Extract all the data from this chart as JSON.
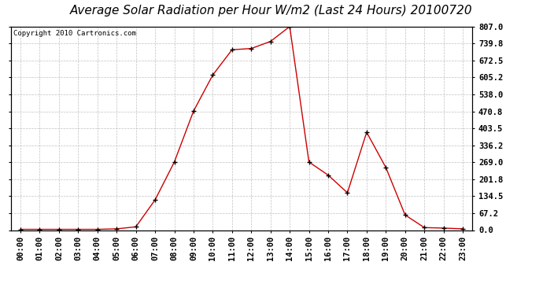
{
  "title": "Average Solar Radiation per Hour W/m2 (Last 24 Hours) 20100720",
  "copyright": "Copyright 2010 Cartronics.com",
  "hours": [
    "00:00",
    "01:00",
    "02:00",
    "03:00",
    "04:00",
    "05:00",
    "06:00",
    "07:00",
    "08:00",
    "09:00",
    "10:00",
    "11:00",
    "12:00",
    "13:00",
    "14:00",
    "15:00",
    "16:00",
    "17:00",
    "18:00",
    "19:00",
    "20:00",
    "21:00",
    "22:00",
    "23:00"
  ],
  "values": [
    3,
    3,
    3,
    3,
    3,
    5,
    13,
    120,
    270,
    472,
    615,
    715,
    720,
    748,
    807,
    270,
    218,
    148,
    388,
    248,
    60,
    10,
    8,
    5
  ],
  "line_color": "#cc0000",
  "marker_color": "#000000",
  "background_color": "#ffffff",
  "grid_color": "#c0c0c0",
  "yticks": [
    0.0,
    67.2,
    134.5,
    201.8,
    269.0,
    336.2,
    403.5,
    470.8,
    538.0,
    605.2,
    672.5,
    739.8,
    807.0
  ],
  "ymin": 0.0,
  "ymax": 807.0,
  "title_fontsize": 11,
  "axis_fontsize": 7.5,
  "copyright_fontsize": 6.5
}
